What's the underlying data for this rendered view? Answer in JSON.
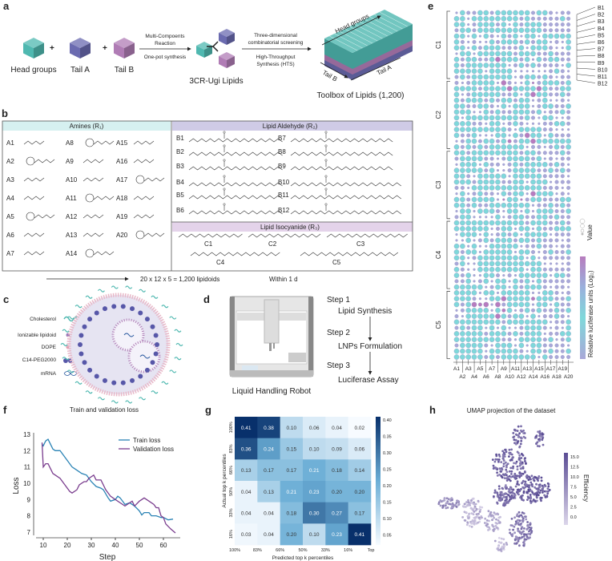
{
  "panel_labels": {
    "a": "a",
    "b": "b",
    "c": "c",
    "d": "d",
    "e": "e",
    "f": "f",
    "g": "g",
    "h": "h"
  },
  "colors": {
    "head": "#4fb8b0",
    "tailA": "#6b6bb0",
    "tailB": "#b07cb5",
    "amine_header": "#d6f0f0",
    "aldehyde_header": "#cfcbe6",
    "isocyanide_header": "#e4d3ea",
    "train": "#2a83b5",
    "validation": "#7a3d8e",
    "dot_low": "#7fd8da",
    "dot_mid": "#a9a8d8",
    "dot_high": "#b77cbe"
  },
  "a": {
    "head_groups": "Head groups",
    "tail_a": "Tail A",
    "tail_b": "Tail B",
    "plus": "+",
    "reaction_line1": "Multi-Compoents",
    "reaction_line2": "Reaction",
    "reaction_below": "One-pot synthesis",
    "product": "3CR-Ugi Lipids",
    "screen_line1": "Three-dimensional",
    "screen_line2": "combinatorial screening",
    "hts_line1": "High-Throughput",
    "hts_line2": "Synthesis (HTS)",
    "axis_head": "Head groups",
    "axis_tail_b": "Tail B",
    "axis_tail_a": "Tail A",
    "toolbox": "Toolbox of Lipids (1,200)"
  },
  "b": {
    "amines_header": "Amines (R₁)",
    "aldehyde_header": "Lipid Aldehyde (R₂)",
    "isocyanide_header": "Lipid Isocyanide (R₃)",
    "amines": [
      "A1",
      "A2",
      "A3",
      "A4",
      "A5",
      "A6",
      "A7",
      "A8",
      "A9",
      "A10",
      "A11",
      "A12",
      "A13",
      "A14",
      "A15",
      "A16",
      "A17",
      "A18",
      "A19",
      "A20"
    ],
    "aldehydes": [
      "B1",
      "B2",
      "B3",
      "B4",
      "B5",
      "B6",
      "B7",
      "B8",
      "B9",
      "B10",
      "B11",
      "B12"
    ],
    "isocyanides": [
      "C1",
      "C2",
      "C3",
      "C4",
      "C5"
    ],
    "formula": "20 x 12 x 5 = 1,200 lipidoids",
    "time": "Within 1 d"
  },
  "c": {
    "legend": [
      "Cholesterol",
      "Ionizable lipidoid",
      "DOPE",
      "C14-PEG2000",
      "mRNA"
    ]
  },
  "d": {
    "robot_caption": "Liquid Handling Robot",
    "steps": [
      {
        "step": "Step 1",
        "label": "Lipid Synthesis"
      },
      {
        "step": "Step 2",
        "label": "LNPs Formulation"
      },
      {
        "step": "Step 3",
        "label": "Luciferase Assay"
      }
    ]
  },
  "e": {
    "row_groups": [
      "C1",
      "C2",
      "C3",
      "C4",
      "C5"
    ],
    "row_labels": [
      "B1",
      "B2",
      "B3",
      "B4",
      "B5",
      "B6",
      "B7",
      "B8",
      "B9",
      "B10",
      "B11",
      "B12"
    ],
    "column_labels": [
      "A1",
      "A2",
      "A3",
      "A4",
      "A5",
      "A6",
      "A7",
      "A8",
      "A9",
      "A10",
      "A11",
      "A12",
      "A13",
      "A14",
      "A15",
      "A16",
      "A17",
      "A18",
      "A19",
      "A20"
    ],
    "size_legend": "Value",
    "color_legend": "Relative luciferase units (Log₂)"
  },
  "chart_data": [
    {
      "type": "line",
      "title": "Train and validation loss",
      "xlabel": "Step",
      "ylabel": "Loss",
      "xlim": [
        7,
        67
      ],
      "ylim": [
        6.8,
        13.1
      ],
      "xticks": [
        10,
        20,
        30,
        40,
        50,
        60
      ],
      "yticks": [
        7,
        8,
        9,
        10,
        11,
        12,
        13
      ],
      "legend": "top-right",
      "grid": false,
      "series": [
        {
          "name": "Train loss",
          "x": [
            9.5,
            10,
            11,
            12,
            13,
            14,
            15,
            17,
            18,
            20,
            22,
            24,
            26,
            28,
            30,
            32,
            34,
            35,
            37,
            38,
            40,
            41,
            42,
            44,
            46,
            48,
            50,
            51,
            52,
            54,
            55,
            57,
            59,
            60,
            62,
            64
          ],
          "y": [
            12.4,
            12.3,
            12.6,
            12.7,
            12.4,
            12.1,
            12.0,
            12.0,
            11.8,
            11.4,
            11.0,
            10.8,
            10.6,
            10.5,
            10.1,
            9.8,
            9.7,
            9.6,
            9.1,
            8.9,
            9.0,
            9.2,
            9.1,
            8.7,
            8.8,
            8.6,
            8.3,
            8.05,
            8.2,
            8.2,
            8.0,
            8.0,
            7.9,
            7.9,
            7.75,
            7.8
          ]
        },
        {
          "name": "Validation loss",
          "x": [
            9.5,
            10,
            11,
            12,
            13,
            14,
            15,
            17,
            19,
            21,
            22,
            24,
            25,
            27,
            28,
            29,
            31,
            32,
            34,
            36,
            38,
            40,
            42,
            44,
            46,
            47,
            48,
            50,
            52,
            54,
            56,
            57,
            58,
            59,
            60,
            61,
            63,
            65
          ],
          "y": [
            12.5,
            11.0,
            11.2,
            11.2,
            10.9,
            10.6,
            10.5,
            10.3,
            9.9,
            9.5,
            9.4,
            9.6,
            9.9,
            10.1,
            10.1,
            10.3,
            10.5,
            10.2,
            10.2,
            9.6,
            9.2,
            9.0,
            8.8,
            8.6,
            8.8,
            8.9,
            8.6,
            8.9,
            9.1,
            8.9,
            8.7,
            8.5,
            8.5,
            8.0,
            7.9,
            7.5,
            7.2,
            6.95
          ]
        }
      ]
    },
    {
      "type": "heatmap",
      "xlabel": "Predicted top k percentiles",
      "ylabel": "Actual top k percentiles",
      "xticks": [
        "100%",
        "83%",
        "66%",
        "50%",
        "33%",
        "16%",
        "Top"
      ],
      "yticks": [
        "100%",
        "83%",
        "66%",
        "50%",
        "33%",
        "16%"
      ],
      "values": [
        [
          0.41,
          0.38,
          0.1,
          0.06,
          0.04,
          0.02
        ],
        [
          0.36,
          0.24,
          0.15,
          0.1,
          0.09,
          0.06
        ],
        [
          0.13,
          0.17,
          0.17,
          0.21,
          0.18,
          0.14
        ],
        [
          0.04,
          0.13,
          0.21,
          0.23,
          0.2,
          0.2
        ],
        [
          0.04,
          0.04,
          0.18,
          0.3,
          0.27,
          0.17
        ],
        [
          0.03,
          0.04,
          0.2,
          0.1,
          0.23,
          0.41
        ]
      ],
      "colorbar_ticks": [
        "0.40",
        "0.35",
        "0.30",
        "0.25",
        "0.20",
        "0.15",
        "0.10",
        "0.05"
      ],
      "colorbar_range": [
        0.02,
        0.41
      ],
      "colormap": "Blues"
    },
    {
      "type": "scatter",
      "title": "UMAP projection of the dataset",
      "colorbar_label": "Efficiency",
      "colorbar_ticks": [
        "15.0",
        "12.5",
        "10.0",
        "7.5",
        "5.0",
        "2.5",
        "0.0"
      ],
      "colorbar_range": [
        -2,
        16
      ],
      "colormap": "Purples"
    }
  ]
}
